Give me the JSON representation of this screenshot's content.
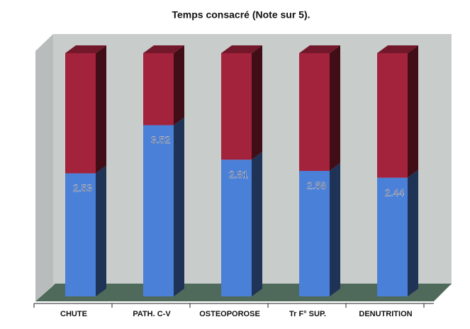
{
  "chart_data": {
    "type": "stacked-bar-3d",
    "title": "Temps consacré (Note sur 5).",
    "categories": [
      "CHUTE",
      "PATH. C-V",
      "OSTEOPOROSE",
      "Tr F° SUP.",
      "DENUTRITION"
    ],
    "series": [
      {
        "color": "#4a80d8",
        "values": [
          2.53,
          3.52,
          2.81,
          2.58,
          2.44
        ]
      },
      {
        "color": "#a3223c",
        "values": [
          2.47,
          1.48,
          2.19,
          2.42,
          2.56
        ]
      }
    ],
    "ylim": [
      0,
      5
    ]
  }
}
